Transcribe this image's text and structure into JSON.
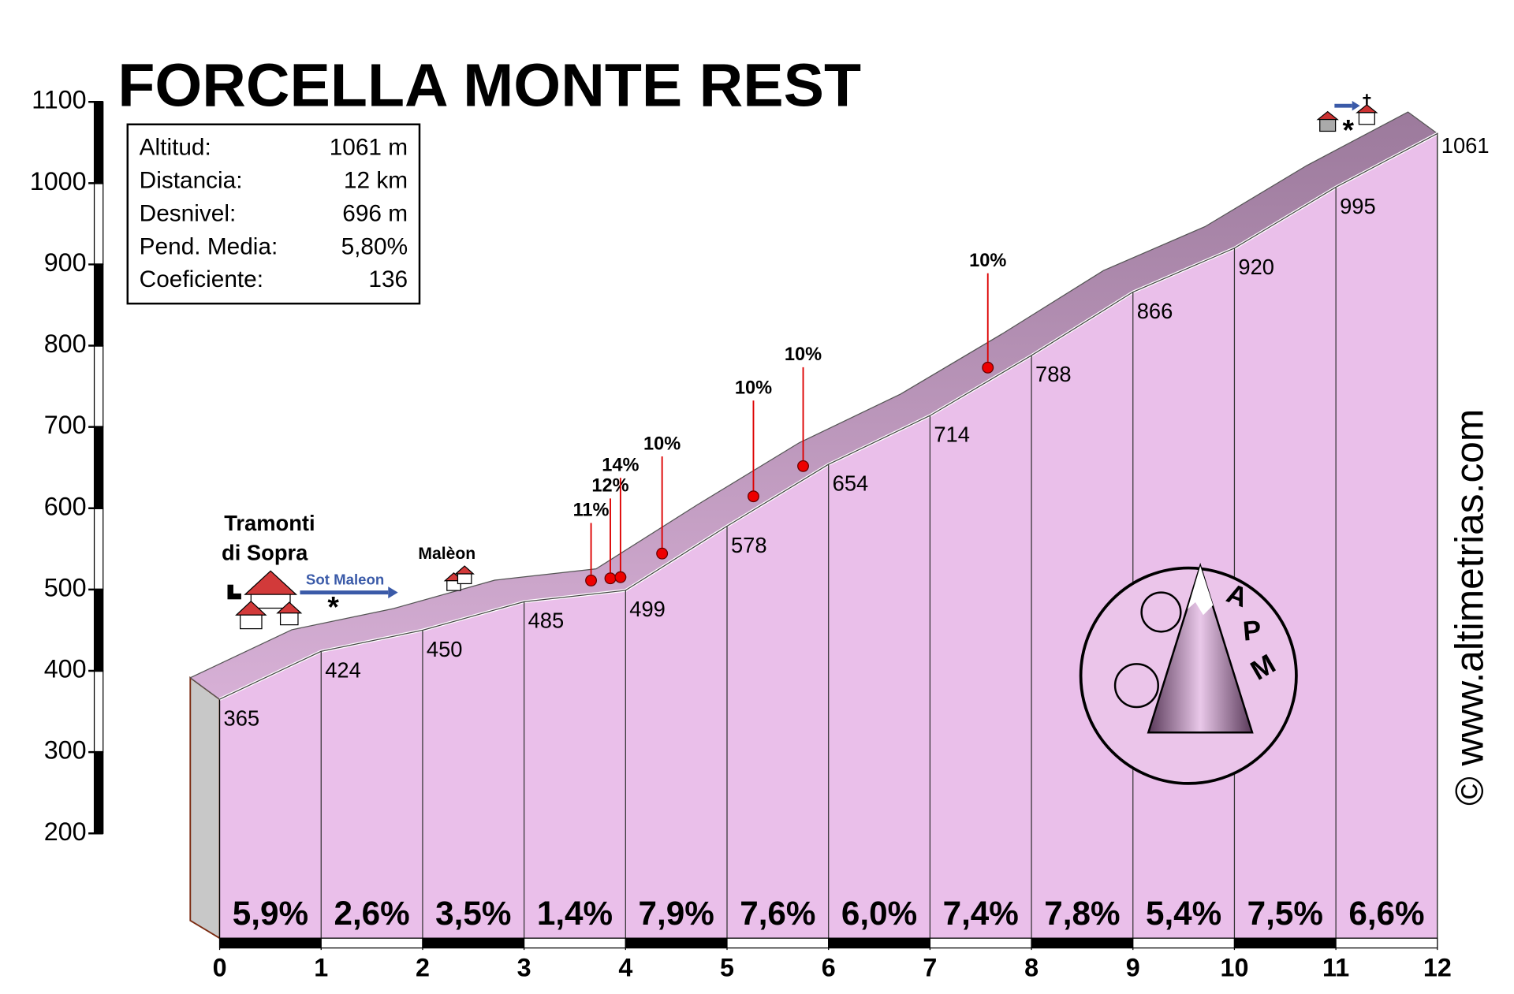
{
  "chart_data": {
    "type": "profile",
    "title": "FORCELLA MONTE REST",
    "x": [
      0,
      1,
      2,
      3,
      4,
      5,
      6,
      7,
      8,
      9,
      10,
      11,
      12
    ],
    "values": [
      365,
      424,
      450,
      485,
      499,
      578,
      654,
      714,
      788,
      866,
      920,
      995,
      1061
    ],
    "color": "#eabfea",
    "xlim": [
      0,
      12
    ],
    "xticks": [
      0,
      1,
      2,
      3,
      4,
      5,
      6,
      7,
      8,
      9,
      10,
      11,
      12
    ],
    "ylim": [
      200,
      1100
    ],
    "yticks": [
      200,
      300,
      400,
      500,
      600,
      700,
      800,
      900,
      1000,
      1100
    ],
    "gradients": {
      "values": [
        5.9,
        2.6,
        3.5,
        1.4,
        7.9,
        7.6,
        6.0,
        7.4,
        7.8,
        5.4,
        7.5,
        6.6
      ],
      "value_labels": [
        "5,9%",
        "2,6%",
        "3,5%",
        "1,4%",
        "7,9%",
        "7,6%",
        "6,0%",
        "7,4%",
        "7,8%",
        "5,4%",
        "7,5%",
        "6,6%"
      ]
    },
    "summary": [
      {
        "label": "Altitud:",
        "value": "1061 m"
      },
      {
        "label": "Distancia:",
        "value": "12 km"
      },
      {
        "label": "Desnivel:",
        "value": "696 m"
      },
      {
        "label": "Pend. Media:",
        "value": "5,80%"
      },
      {
        "label": "Coeficiente:",
        "value": "136"
      }
    ],
    "markers": [
      {
        "x": 3.66,
        "label": "11%"
      },
      {
        "x": 3.85,
        "label": "12%"
      },
      {
        "x": 3.95,
        "label": "14%"
      },
      {
        "x": 4.36,
        "label": "10%"
      },
      {
        "x": 5.26,
        "label": "10%"
      },
      {
        "x": 5.75,
        "label": "10%"
      },
      {
        "x": 7.57,
        "label": "10%"
      }
    ],
    "places": [
      "Tramonti",
      "di Sopra",
      "Sot Maleon",
      "Malèon"
    ],
    "logo": [
      "A",
      "P",
      "M"
    ],
    "credit": "© www.altimetrias.com"
  }
}
